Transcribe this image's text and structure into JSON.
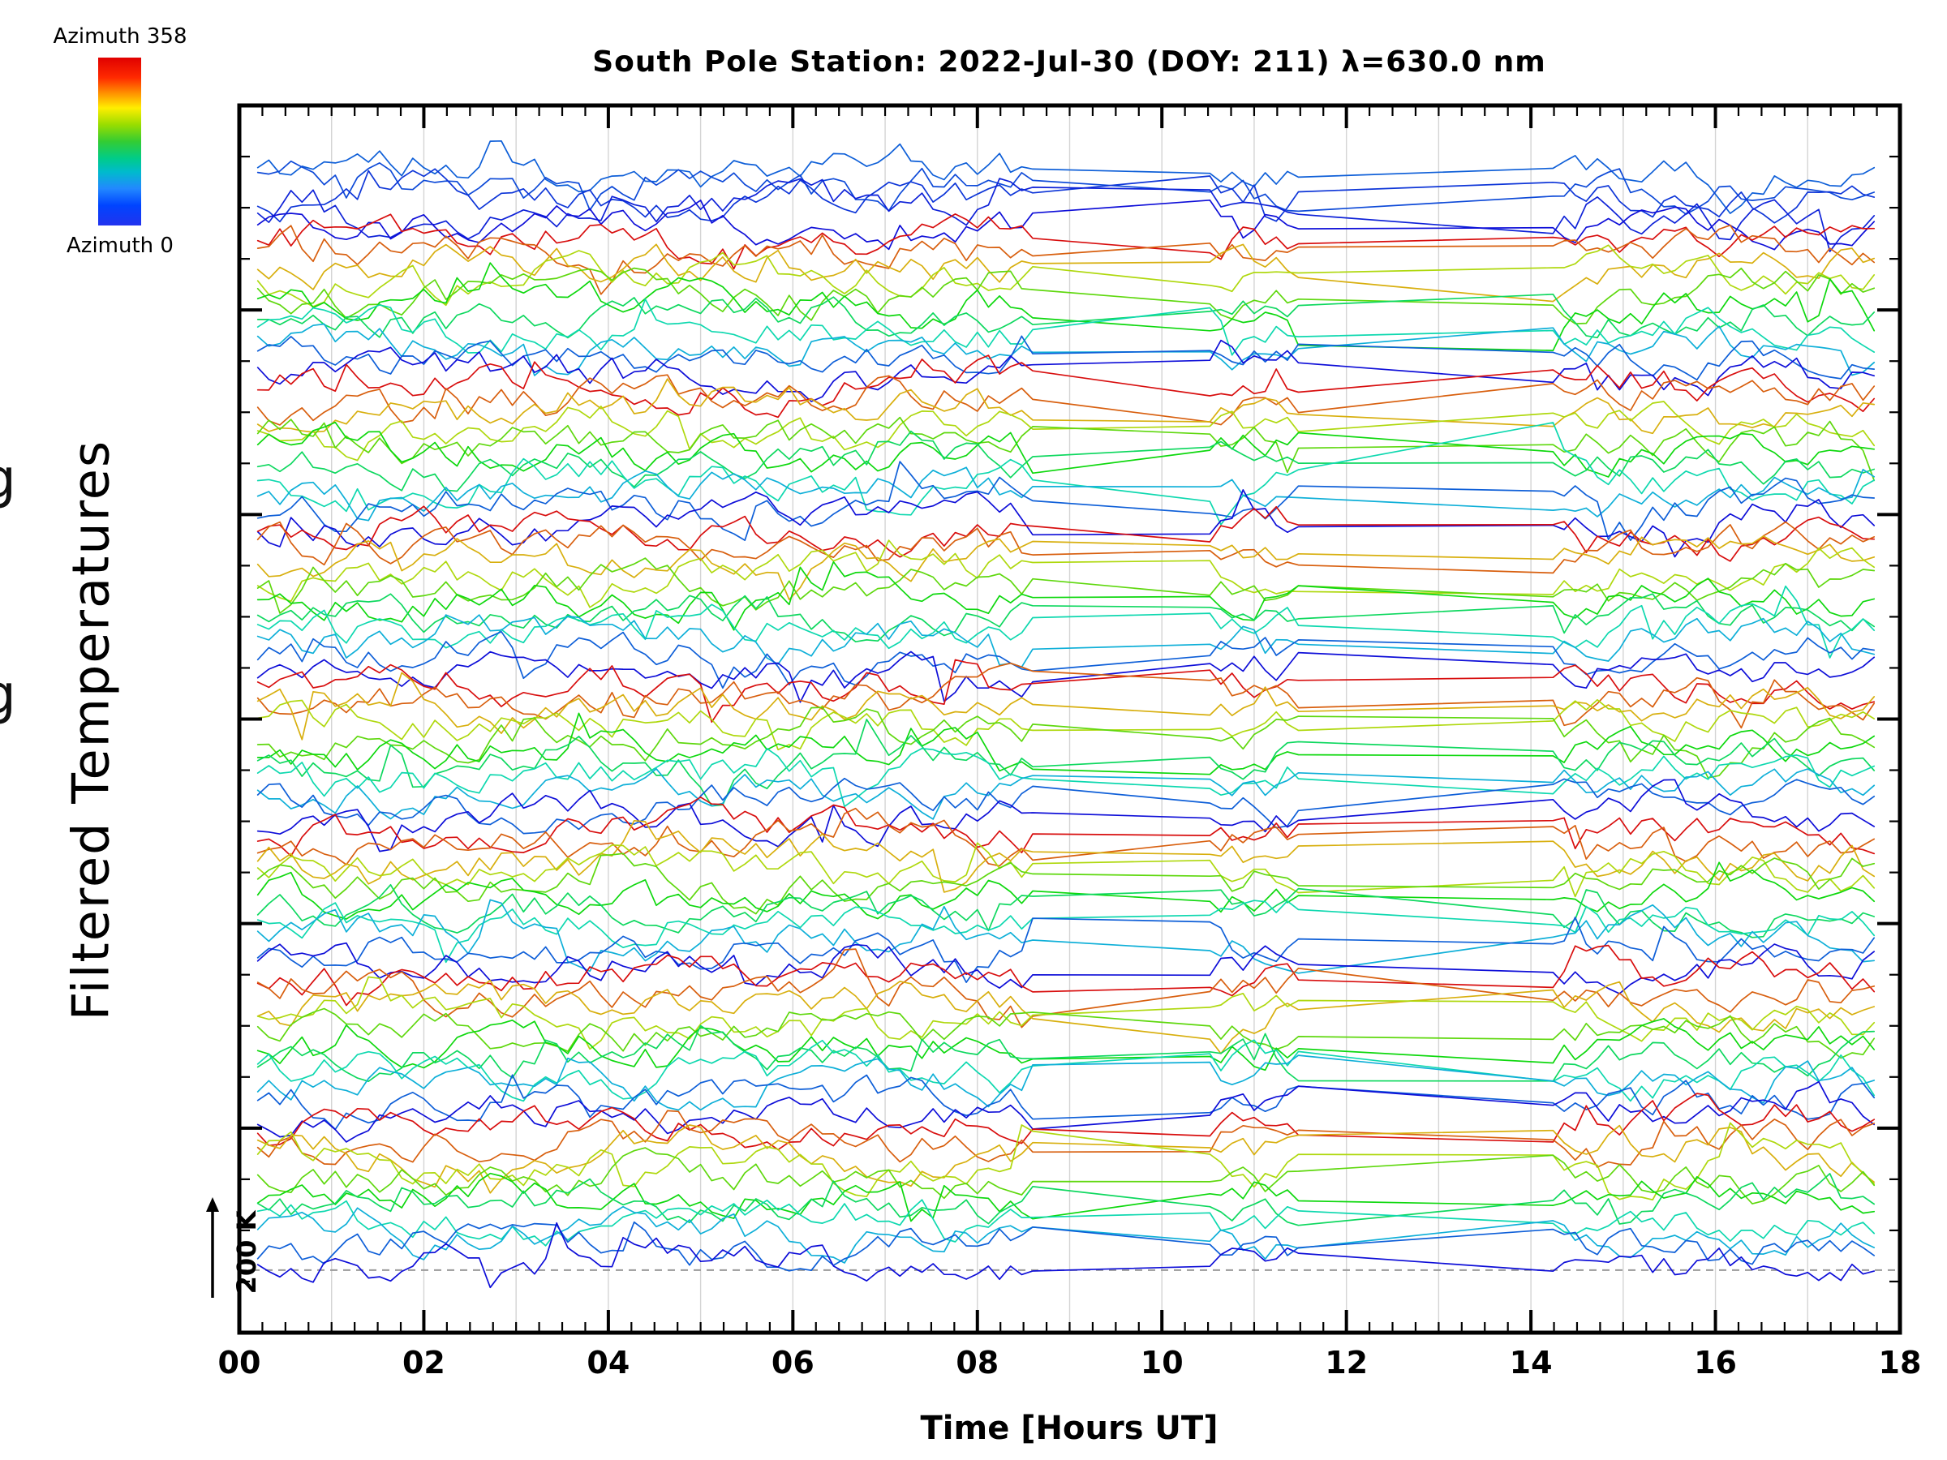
{
  "header": {
    "title": "South Pole Station: 2022-Jul-30 (DOY: 211) λ=630.0 nm"
  },
  "axes": {
    "xlabel": "Time [Hours UT]",
    "ylabel": "Filtered Temperatures",
    "x_tick_labels": [
      "00",
      "02",
      "04",
      "06",
      "08",
      "10",
      "12",
      "14",
      "16",
      "18"
    ],
    "y_axis_numeric_labels": "none (relative scale, see 200 K scale bar)"
  },
  "colorbar": {
    "top_label": "Azimuth 358",
    "bottom_label": "Azimuth 0",
    "colors_top_to_bottom": [
      "#e00000",
      "#ff9900",
      "#ffee00",
      "#33cc33",
      "#00bbcc",
      "#2288ff",
      "#2233ee"
    ]
  },
  "scale_bar": {
    "label": "200 K"
  },
  "edge_fragments": {
    "upper": "g",
    "lower": "g"
  },
  "chart_data": {
    "type": "line",
    "title": "South Pole Station: 2022-Jul-30 (DOY: 211) λ=630.0 nm",
    "xlabel": "Time [Hours UT]",
    "ylabel": "Filtered Temperatures",
    "xlim": [
      0,
      18
    ],
    "x_tick_labels": [
      "00",
      "02",
      "04",
      "06",
      "08",
      "10",
      "12",
      "14",
      "16",
      "18"
    ],
    "x_data_range": [
      0.2,
      17.75
    ],
    "ylim": "unlabeled relative temperature offsets; vertical scale bar = 200 K",
    "gridlines": {
      "vertical_every_hours": 1,
      "color": "#d4d4d4",
      "horizontal": "off"
    },
    "data_gaps_hours": [
      [
        8.65,
        10.45
      ],
      [
        11.55,
        14.2
      ]
    ],
    "dashed_reference_line": {
      "style": "dashed",
      "color": "#9a9a9a",
      "y_frac": 0.949
    },
    "color_encoding": {
      "variable": "azimuth_deg",
      "min": 0,
      "max": 358,
      "min_color": "blue",
      "max_color": "red",
      "legend_position": "colorbar top-left outside axes"
    },
    "series_spec": {
      "description": "Dozens of azimuth-scan airglow temperature traces stacked vertically, color cycling red (azimuth 358) to blue (azimuth 0) repeatedly from top to bottom; traces wiggle with noise and are linearly interpolated (straight segments) across the two data gaps.",
      "top_partial_group": {
        "count": 5,
        "azimuth_from": 36,
        "azimuth_to": 0
      },
      "cycles": 7,
      "lines_per_cycle": 11,
      "cycle_azimuth_top": 358,
      "cycle_azimuth_bottom": 0,
      "approx_total_lines": 82
    },
    "vertical_scale": {
      "bar_label": "200 K",
      "arrow_direction": "up"
    },
    "legend": "none (colorbar only)"
  }
}
